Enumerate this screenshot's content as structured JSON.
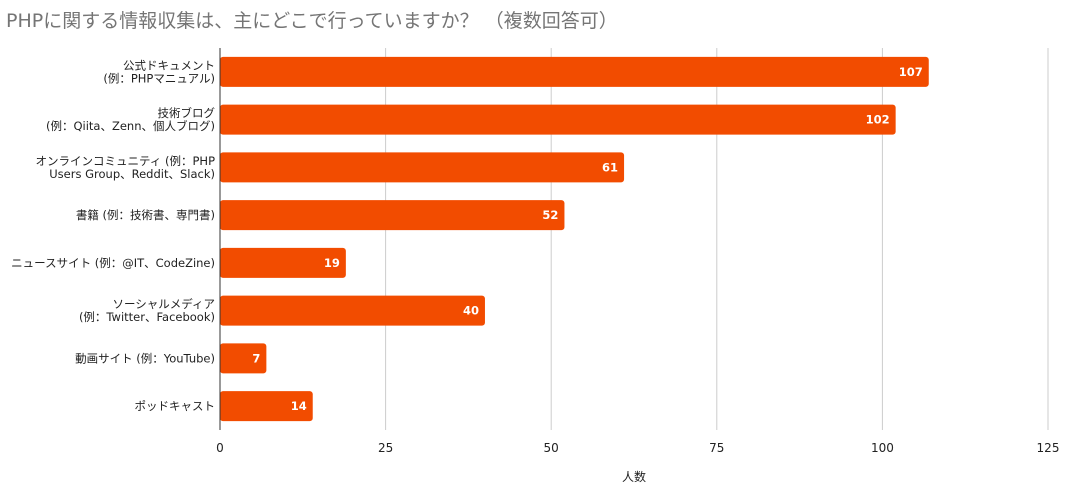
{
  "chart_data": {
    "type": "bar",
    "orientation": "horizontal",
    "title": "PHPに関する情報収集は、主にどこで行っていますか？ （複数回答可）",
    "xlabel": "人数",
    "ylabel": "",
    "categories": [
      [
        "公式ドキュメント",
        "(例：PHPマニュアル)"
      ],
      [
        "技術ブログ",
        "(例：Qiita、Zenn、個人ブログ)"
      ],
      [
        "オンラインコミュニティ (例：PHP",
        "Users Group、Reddit、Slack)"
      ],
      [
        "書籍 (例：技術書、専門書)"
      ],
      [
        "ニュースサイト (例：@IT、CodeZine)"
      ],
      [
        "ソーシャルメディア",
        "(例：Twitter、Facebook)"
      ],
      [
        "動画サイト (例：YouTube)"
      ],
      [
        "ポッドキャスト"
      ]
    ],
    "values": [
      107,
      102,
      61,
      52,
      19,
      40,
      7,
      14
    ],
    "xlim": [
      0,
      125
    ],
    "xticks": [
      0,
      25,
      50,
      75,
      100,
      125
    ],
    "grid": true,
    "legend": "none",
    "bar_color": "#F24C00",
    "grid_color": "#cccccc",
    "value_labels": true
  }
}
